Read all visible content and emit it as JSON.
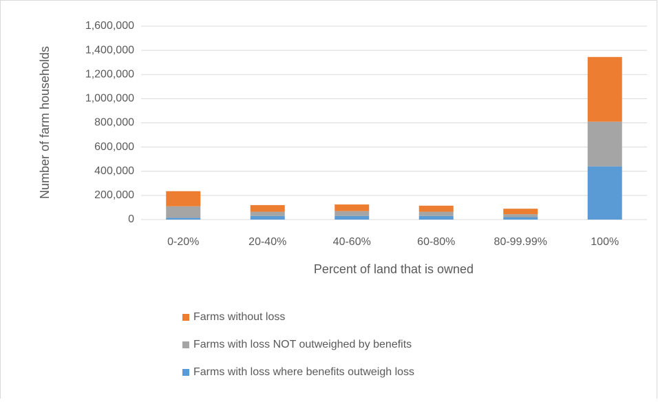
{
  "chart_data": {
    "type": "stacked-bar",
    "x_label": "Percent of land that is owned",
    "y_label": "Number of farm households",
    "categories": [
      "0-20%",
      "20-40%",
      "40-60%",
      "60-80%",
      "80-99.99%",
      "100%"
    ],
    "series": [
      {
        "name": "Farms with loss where benefits outweigh loss",
        "color": "#5b9bd5",
        "values": [
          15000,
          30000,
          30000,
          30000,
          20000,
          440000
        ]
      },
      {
        "name": "Farms with loss NOT outweighed by benefits",
        "color": "#a5a5a5",
        "values": [
          95000,
          35000,
          40000,
          35000,
          25000,
          370000
        ]
      },
      {
        "name": "Farms without loss",
        "color": "#ed7d31",
        "values": [
          125000,
          55000,
          55000,
          50000,
          45000,
          535000
        ]
      }
    ],
    "ylim": [
      0,
      1600000
    ],
    "yticks": [
      0,
      {
        "value": 200000,
        "label": "200,000"
      },
      {
        "value": 400000,
        "label": "400,000"
      },
      {
        "value": 600000,
        "label": "600,000"
      },
      {
        "value": 800000,
        "label": "800,000"
      },
      {
        "value": 1000000,
        "label": "1,000,000"
      },
      {
        "value": 1200000,
        "label": "1,200,000"
      },
      {
        "value": 1400000,
        "label": "1,400,000"
      },
      {
        "value": 1600000,
        "label": "1,600,000"
      }
    ],
    "grid": true
  }
}
